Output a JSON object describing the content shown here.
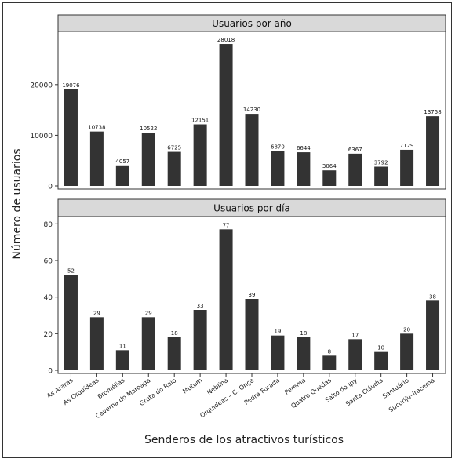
{
  "chart_data": {
    "type": "bar",
    "xlabel": "Senderos de los atractivos turísticos",
    "ylabel": "Número de usuarios",
    "categories": [
      "As Araras",
      "As Orquídeas",
      "Bromélias",
      "Caverna do Maroaga",
      "Gruta do Raio",
      "Mutum",
      "Neblina",
      "Orquídeas – C. Onça",
      "Pedra Furada",
      "Perema",
      "Quatro Quedas",
      "Salto do Ipy",
      "Santa Cláudia",
      "Santuário",
      "Sucuriju–Iracema"
    ],
    "panels": [
      {
        "title": "Usuarios por año",
        "ylim": [
          0,
          30500
        ],
        "yticks": [
          0,
          10000,
          20000
        ],
        "values": [
          19076,
          10738,
          4057,
          10522,
          6725,
          12151,
          28018,
          14230,
          6870,
          6644,
          3064,
          6367,
          3792,
          7129,
          13758
        ]
      },
      {
        "title": "Usuarios por día",
        "ylim": [
          0,
          84
        ],
        "yticks": [
          0,
          20,
          40,
          60,
          80
        ],
        "values": [
          52,
          29,
          11,
          29,
          18,
          33,
          77,
          39,
          19,
          18,
          8,
          17,
          10,
          20,
          38
        ]
      }
    ],
    "colors": {
      "bar": "#333333",
      "strip": "#d9d9d9",
      "frame": "#333333"
    },
    "grid": false,
    "legend": "none"
  }
}
